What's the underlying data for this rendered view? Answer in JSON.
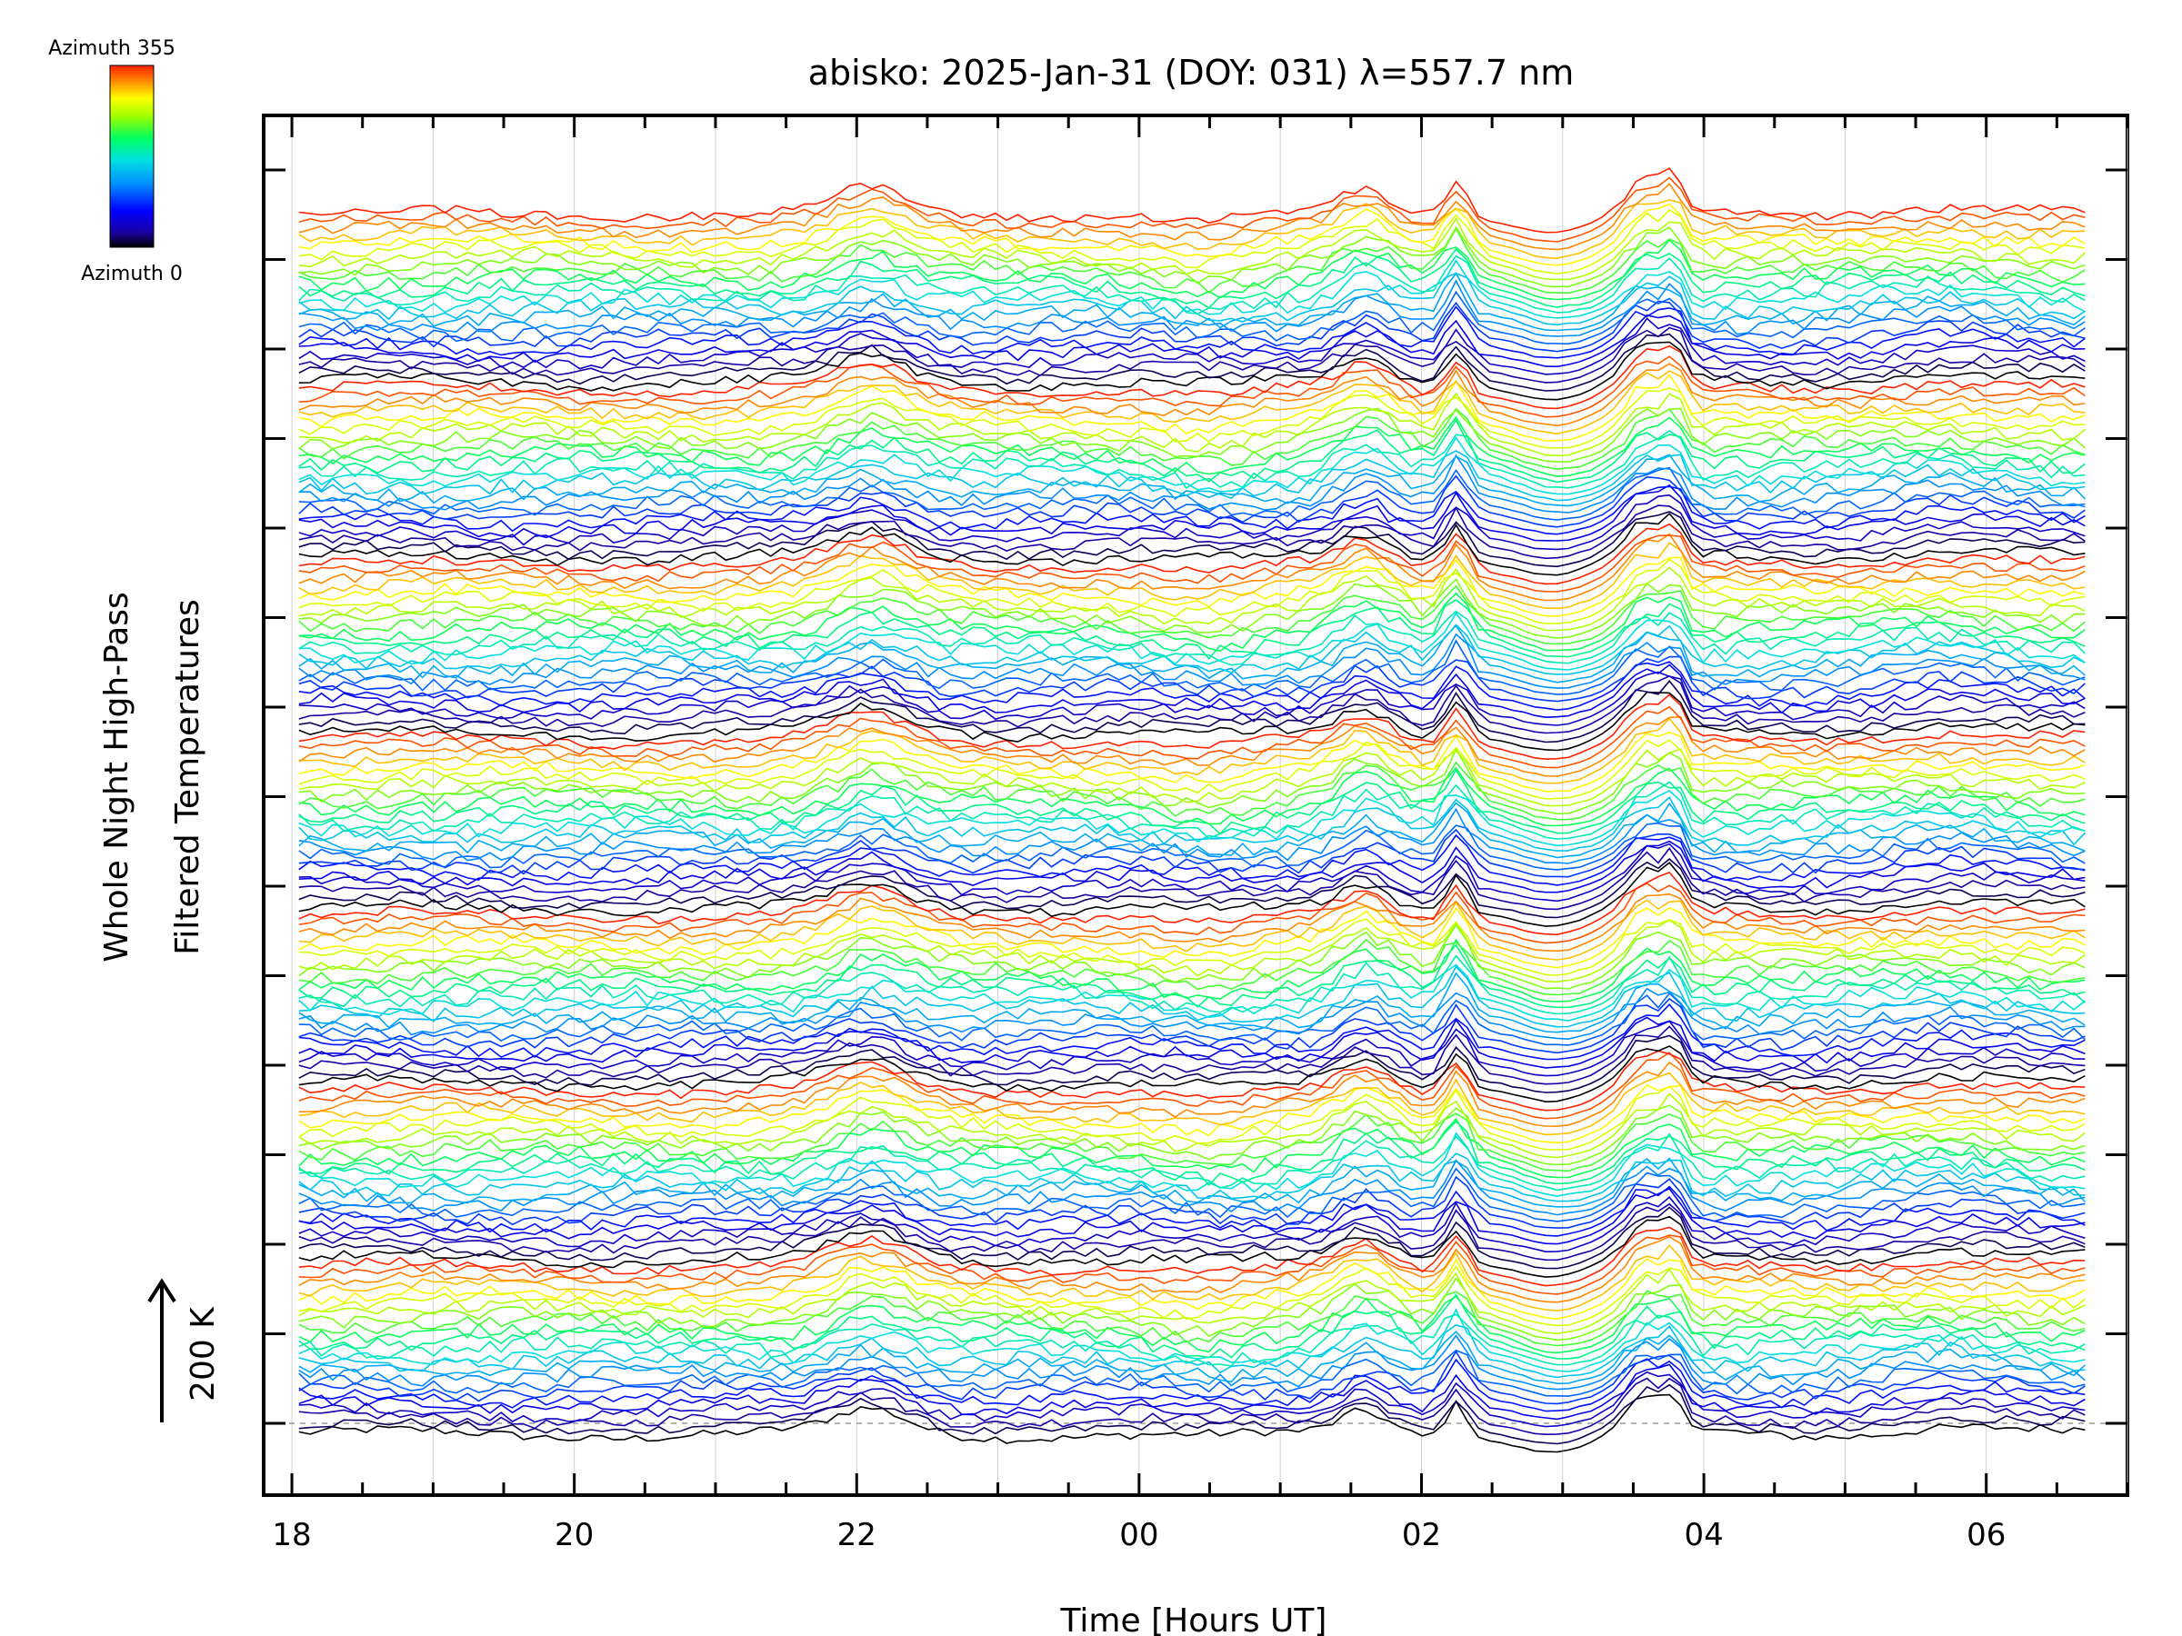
{
  "chart_data": {
    "type": "line",
    "title": "abisko: 2025-Jan-31 (DOY: 031) λ=557.7 nm",
    "xlabel": "Time [Hours UT]",
    "ylabel_line1": "Whole Night High-Pass",
    "ylabel_line2": "Filtered Temperatures",
    "scale_label": "200 K",
    "x_tick_labels": [
      "18",
      "20",
      "22",
      "00",
      "02",
      "04",
      "06"
    ],
    "x_range_hours": [
      17.8,
      31.0
    ],
    "x_data_range_hours": [
      18.05,
      30.7
    ],
    "colorbar": {
      "top_label": "Azimuth 355",
      "bottom_label": "Azimuth 0",
      "colormap": "rainbow",
      "stops": [
        "#000000",
        "#1a00a0",
        "#0000ff",
        "#0090ff",
        "#00e0e0",
        "#00ff60",
        "#a0ff00",
        "#ffff00",
        "#ff8000",
        "#ff2000"
      ]
    },
    "series_layout": {
      "groups": 7,
      "azimuths_per_group": 24,
      "note_style": "stacked azimuth traces, offset vertically"
    },
    "events_hours": [
      22.1,
      25.6,
      26.25,
      27.6,
      27.8
    ],
    "grid": "vertical lines only",
    "baseline_style": "dashed gray"
  }
}
